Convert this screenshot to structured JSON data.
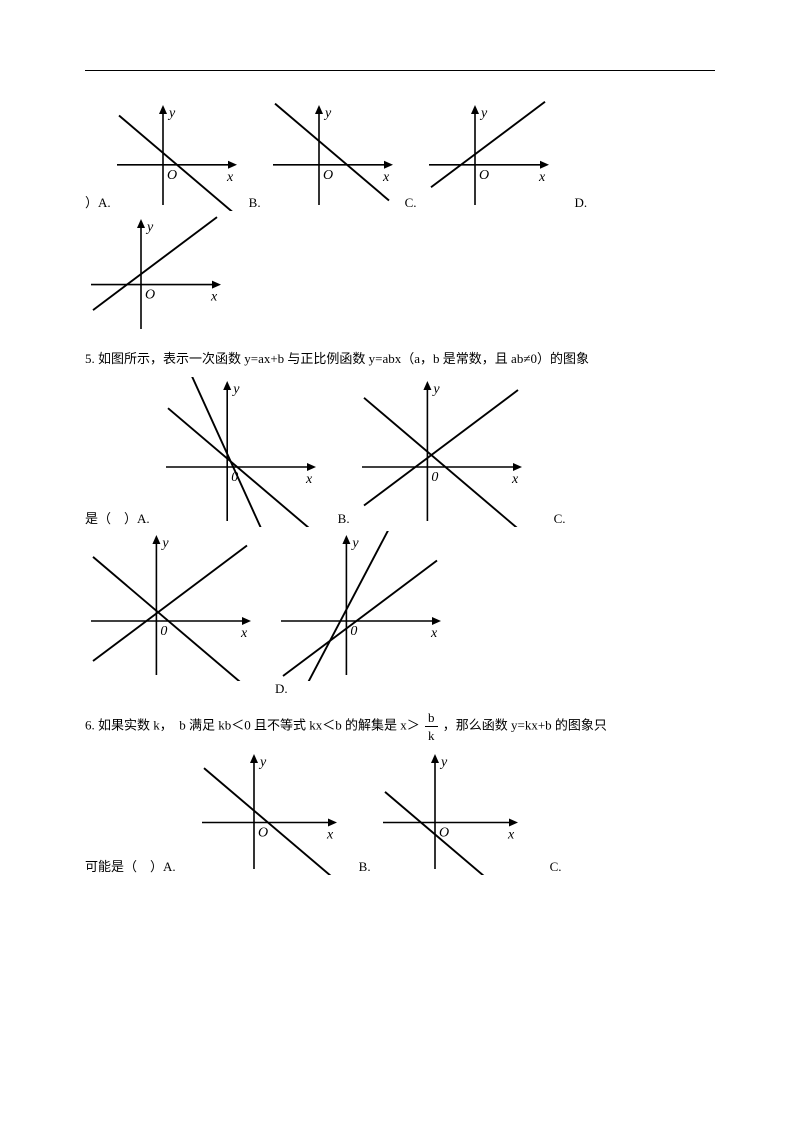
{
  "axis_labels": {
    "x": "x",
    "y": "y",
    "o": "O",
    "o_small": "0"
  },
  "opt": {
    "A": "A.",
    "B": "B.",
    "C": "C.",
    "D": "D."
  },
  "paren_left": "）",
  "q4": {
    "prefix": "）"
  },
  "q5": {
    "text": "5. 如图所示，表示一次函数 y=ax+b 与正比例函数 y=abx（a，b 是常数，且 ab≠0）的图象",
    "line2_prefix": "是（　）"
  },
  "q6": {
    "text_part1": "6. 如果实数 k，　b 满足 kb＜0 且不等式 kx＜b 的解集是 x＞",
    "frac_num": "b",
    "frac_den": "k",
    "text_part2": "，那么函数 y=kx+b 的图象只",
    "line2_prefix": "可能是（　）"
  },
  "style": {
    "stroke": "#000000",
    "stroke_width": 1.6,
    "arrow_width": 2
  },
  "graphs": {
    "smallW": 130,
    "smallH": 110,
    "medW": 170,
    "medH": 150,
    "q4_row1": [
      {
        "slope": "neg",
        "x_intercept_sign": "pos",
        "o": "O"
      },
      {
        "slope": "neg",
        "x_intercept_sign": "pos_right",
        "o": "O"
      },
      {
        "slope": "pos",
        "x_intercept_sign": "neg",
        "o": "O"
      }
    ],
    "q4_row2": [
      {
        "slope": "pos",
        "x_intercept_sign": "neg",
        "o": "O"
      }
    ],
    "q5_row1": [
      {
        "lines": [
          {
            "slope": "neg",
            "xi": 10
          },
          {
            "slope": "neg_steep",
            "xi": 6
          }
        ],
        "o": "0"
      },
      {
        "lines": [
          {
            "slope": "neg",
            "xi": 18
          },
          {
            "slope": "pos",
            "xi": -12
          }
        ],
        "o": "0"
      }
    ],
    "q5_row2": [
      {
        "lines": [
          {
            "slope": "pos",
            "xi": -10
          },
          {
            "slope": "neg",
            "xi": 12
          }
        ],
        "o": "0"
      },
      {
        "lines": [
          {
            "slope": "pos",
            "xi": 10
          },
          {
            "slope": "pos_steep",
            "xi": -6
          }
        ],
        "o": "0"
      }
    ],
    "q6_row1": [
      {
        "slope": "neg",
        "x_intercept_sign": "pos",
        "o": "O"
      },
      {
        "slope": "neg",
        "x_intercept_sign": "neg",
        "o": "O"
      }
    ]
  }
}
